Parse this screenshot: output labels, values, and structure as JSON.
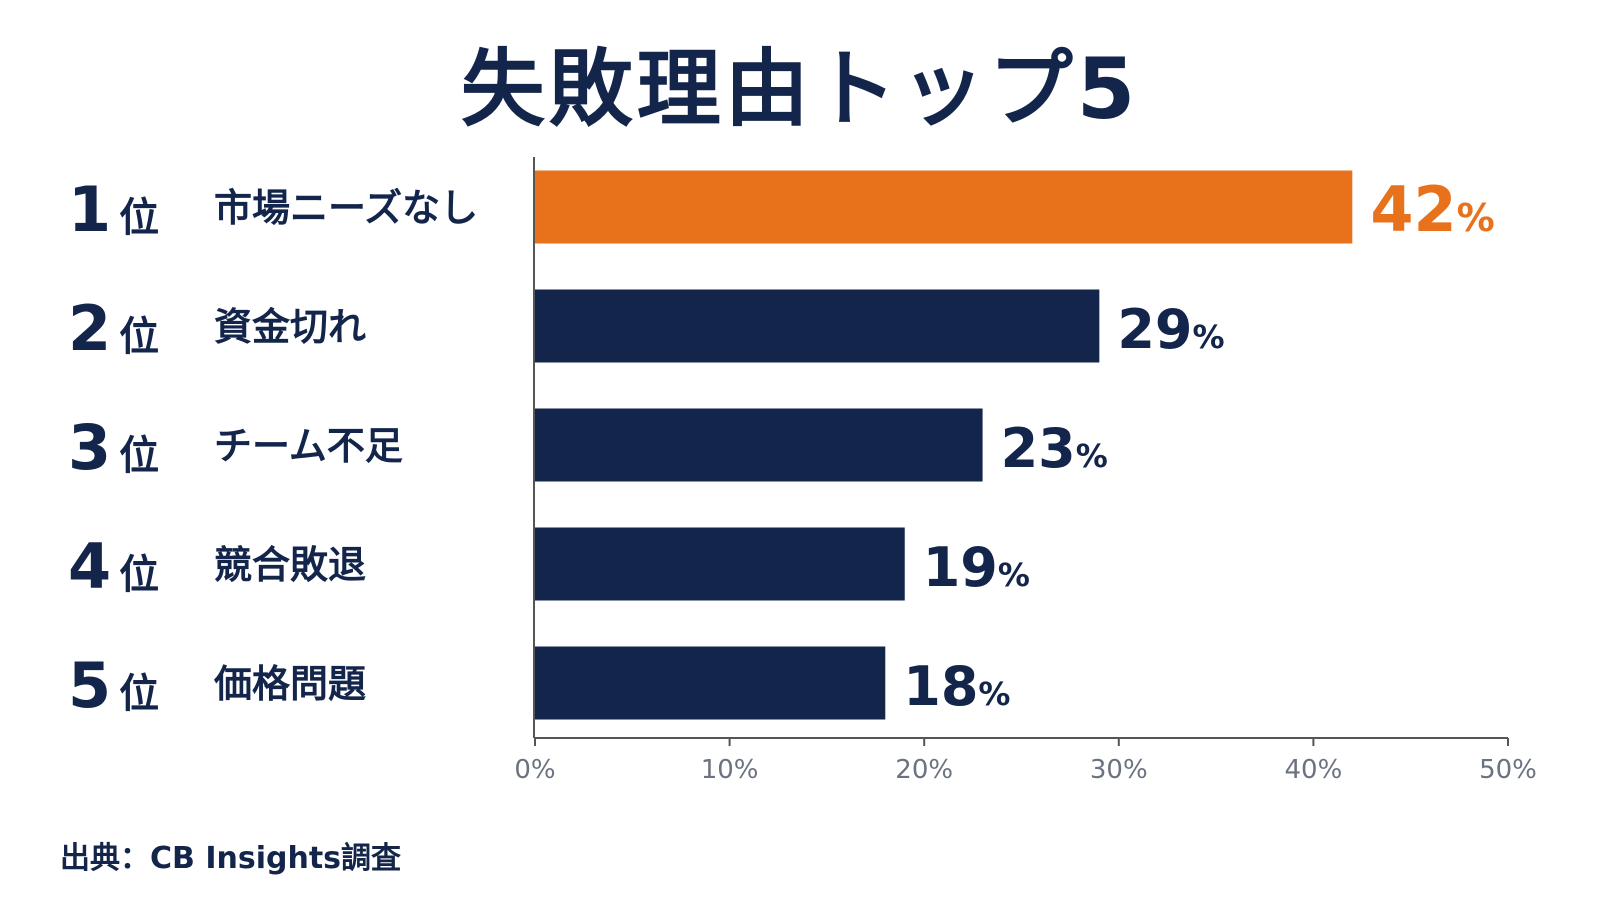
{
  "chart_data": {
    "type": "bar",
    "orientation": "horizontal",
    "title": "失敗理由トップ5",
    "ranks": [
      "1",
      "2",
      "3",
      "4",
      "5"
    ],
    "rank_suffix": "位",
    "categories": [
      "市場ニーズなし",
      "資金切れ",
      "チーム不足",
      "競合敗退",
      "価格問題"
    ],
    "values": [
      42,
      29,
      23,
      19,
      18
    ],
    "value_suffix": "%",
    "xlim": [
      0,
      50
    ],
    "xticks": [
      "0%",
      "10%",
      "20%",
      "30%",
      "40%",
      "50%"
    ],
    "grid": false,
    "highlight_index": 0
  },
  "colors": {
    "highlight": "#e8711c",
    "bar": "#13254a",
    "text": "#13254a",
    "axis": "#555555",
    "tick_label": "#6b7280"
  },
  "source": "出典：CB Insights調査"
}
